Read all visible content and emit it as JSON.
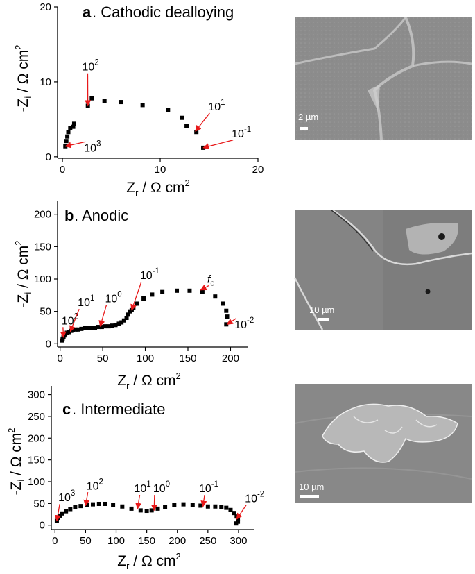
{
  "panels": [
    {
      "letter": "a",
      "title": ". Cathodic dealloying",
      "scale_label": "2 µm",
      "sem_colors": {
        "base": "#8e8e8e",
        "dark": "#6f6f6f",
        "light": "#c9c9c9"
      }
    },
    {
      "letter": "b",
      "title": ". Anodic",
      "scale_label": "10 µm",
      "sem_colors": {
        "base": "#7d7d7d",
        "dark": "#5c5c5c",
        "light": "#d8d8d8"
      }
    },
    {
      "letter": "c",
      "title": ". Intermediate",
      "scale_label": "10 µm",
      "sem_colors": {
        "base": "#888888",
        "dark": "#666666",
        "light": "#e6e6e6"
      }
    }
  ],
  "colors": {
    "marker": "#000000",
    "arrow": "#e8191a",
    "axis": "#000000"
  },
  "chart_data": [
    {
      "type": "scatter",
      "xlabel": "Z_r / Ω cm²",
      "ylabel": "-Z_i / Ω cm²",
      "xlim": [
        -0.5,
        20
      ],
      "ylim": [
        -0.2,
        20
      ],
      "xticks": [
        "0",
        "10",
        "20"
      ],
      "yticks": [
        "0",
        "10",
        "20"
      ],
      "xtick_values": [
        0,
        10,
        20
      ],
      "ytick_values": [
        0,
        10,
        20
      ],
      "series": [
        {
          "x": [
            0.3,
            0.4,
            0.5,
            0.6,
            0.8,
            1.1,
            1.2,
            2.6,
            3.0,
            4.3,
            6.0,
            8.2,
            10.8,
            12.2,
            12.7,
            13.7,
            14.4
          ],
          "y": [
            1.4,
            2.1,
            2.7,
            3.3,
            3.8,
            4.0,
            4.4,
            6.8,
            7.8,
            7.4,
            7.3,
            6.9,
            6.2,
            5.2,
            4.1,
            3.3,
            1.2
          ]
        }
      ],
      "annotations": [
        {
          "label": "10²",
          "x": 2.6,
          "y": 6.8,
          "label_x": 2.3,
          "label_y": 11.5
        },
        {
          "label": "10¹",
          "x": 13.6,
          "y": 3.4,
          "label_x": 15.2,
          "label_y": 6.2
        },
        {
          "label": "10⁻¹",
          "x": 14.4,
          "y": 1.2,
          "label_x": 17.6,
          "label_y": 2.6
        },
        {
          "label": "10³",
          "x": 0.3,
          "y": 1.4,
          "label_x": 2.5,
          "label_y": 0.7
        }
      ]
    },
    {
      "type": "scatter",
      "xlabel": "Z_r / Ω cm²",
      "ylabel": "-Z_i / Ω cm²",
      "xlim": [
        -3,
        220
      ],
      "ylim": [
        -5,
        220
      ],
      "xticks": [
        "0",
        "50",
        "100",
        "150",
        "200"
      ],
      "yticks": [
        "0",
        "50",
        "100",
        "150",
        "200"
      ],
      "xtick_values": [
        0,
        50,
        100,
        150,
        200
      ],
      "ytick_values": [
        0,
        50,
        100,
        150,
        200
      ],
      "series": [
        {
          "x": [
            2,
            3,
            4,
            5,
            6,
            8,
            10,
            13,
            15,
            18,
            21,
            25,
            29,
            33,
            37,
            41,
            45,
            49,
            53,
            57,
            61,
            65,
            69,
            72,
            75,
            78,
            80,
            82,
            84,
            86,
            90,
            98,
            108,
            120,
            137,
            152,
            167,
            182,
            191,
            195,
            196,
            195
          ],
          "y": [
            5,
            8,
            11,
            13,
            15,
            17,
            18,
            20,
            21,
            22,
            22,
            23,
            24,
            24,
            25,
            25,
            26,
            26,
            27,
            27,
            28,
            29,
            31,
            33,
            36,
            40,
            45,
            50,
            52,
            55,
            62,
            70,
            76,
            80,
            82,
            82,
            80,
            73,
            62,
            51,
            42,
            30
          ]
        }
      ],
      "annotations": [
        {
          "label": "10²",
          "x": 4,
          "y": 10,
          "label_x": 5,
          "label_y": 30
        },
        {
          "label": "10¹",
          "x": 12,
          "y": 19,
          "label_x": 24,
          "label_y": 58
        },
        {
          "label": "10⁰",
          "x": 47,
          "y": 27,
          "label_x": 56,
          "label_y": 64
        },
        {
          "label": "10⁻¹",
          "x": 84,
          "y": 52,
          "label_x": 97,
          "label_y": 100
        },
        {
          "label": "fc",
          "x": 165,
          "y": 83,
          "label_x": 176,
          "label_y": 94
        },
        {
          "label": "10⁻²",
          "x": 196,
          "y": 30,
          "label_x": 208,
          "label_y": 24
        }
      ]
    },
    {
      "type": "scatter",
      "xlabel": "Z_r / Ω cm²",
      "ylabel": "-Z_i / Ω cm²",
      "xlim": [
        -6,
        325
      ],
      "ylim": [
        -10,
        320
      ],
      "xticks": [
        "0",
        "50",
        "100",
        "150",
        "200",
        "250",
        "300"
      ],
      "yticks": [
        "0",
        "50",
        "100",
        "150",
        "200",
        "250",
        "300"
      ],
      "xtick_values": [
        0,
        50,
        100,
        150,
        200,
        250,
        300
      ],
      "ytick_values": [
        0,
        50,
        100,
        150,
        200,
        250,
        300
      ],
      "series": [
        {
          "x": [
            3,
            5,
            8,
            12,
            18,
            25,
            33,
            42,
            52,
            62,
            72,
            82,
            95,
            110,
            125,
            140,
            150,
            158,
            168,
            180,
            195,
            210,
            225,
            238,
            250,
            262,
            272,
            280,
            287,
            293,
            297,
            299,
            299,
            296
          ],
          "y": [
            10,
            17,
            22,
            27,
            32,
            37,
            41,
            44,
            46,
            48,
            49,
            49,
            47,
            43,
            38,
            34,
            33,
            34,
            38,
            42,
            46,
            48,
            47,
            45,
            43,
            43,
            42,
            40,
            35,
            28,
            20,
            14,
            8,
            4
          ]
        }
      ],
      "annotations": [
        {
          "label": "10³",
          "x": 3,
          "y": 10,
          "label_x": 10,
          "label_y": 55
        },
        {
          "label": "10²",
          "x": 50,
          "y": 45,
          "label_x": 56,
          "label_y": 82
        },
        {
          "label": "10¹",
          "x": 135,
          "y": 38,
          "label_x": 134,
          "label_y": 76
        },
        {
          "label": "10⁰",
          "x": 162,
          "y": 34,
          "label_x": 165,
          "label_y": 76
        },
        {
          "label": "10⁻¹",
          "x": 242,
          "y": 43,
          "label_x": 240,
          "label_y": 76
        },
        {
          "label": "10⁻²",
          "x": 297,
          "y": 14,
          "label_x": 315,
          "label_y": 53
        }
      ]
    }
  ]
}
